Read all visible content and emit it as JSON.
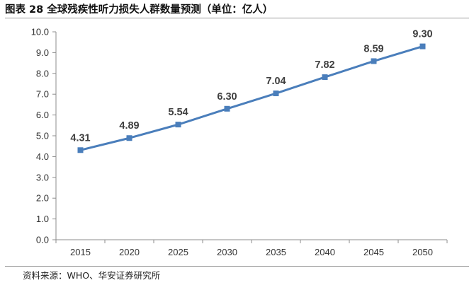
{
  "title": "图表 28 全球残疾性听力损失人群数量预测（单位：亿人）",
  "source": "资料来源：WHO、华安证券研究所",
  "colors": {
    "series": "#4a7ebb",
    "axis": "#8c8c8c"
  },
  "chart_data": {
    "type": "line",
    "title": "图表 28 全球残疾性听力损失人群数量预测（单位：亿人）",
    "categories": [
      "2015",
      "2020",
      "2025",
      "2030",
      "2035",
      "2040",
      "2045",
      "2050"
    ],
    "values": [
      4.31,
      4.89,
      5.54,
      6.3,
      7.04,
      7.82,
      8.59,
      9.3
    ],
    "data_labels": [
      "4.31",
      "4.89",
      "5.54",
      "6.30",
      "7.04",
      "7.82",
      "8.59",
      "9.30"
    ],
    "y_ticks": [
      "0.0",
      "1.0",
      "2.0",
      "3.0",
      "4.0",
      "5.0",
      "6.0",
      "7.0",
      "8.0",
      "9.0",
      "10.0"
    ],
    "ylim": [
      0,
      10
    ],
    "xlabel": "",
    "ylabel": "",
    "grid": false,
    "legend": "none",
    "marker": "square"
  }
}
